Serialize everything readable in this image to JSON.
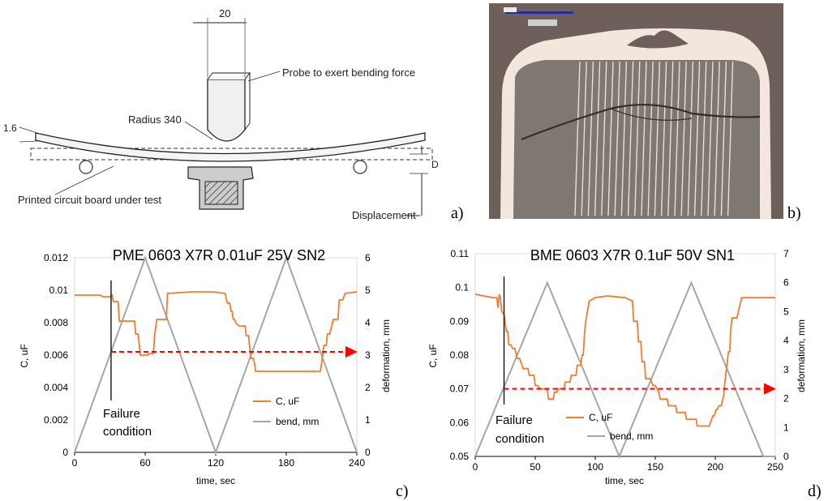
{
  "panel_labels": {
    "a": "a)",
    "b": "b)",
    "c": "c)",
    "d": "d)"
  },
  "diagram": {
    "width_label": "20",
    "probe_label": "Probe to exert bending force",
    "radius_label": "Radius 340",
    "thickness_label": "1.6",
    "pcb_label": "Printed circuit board under test",
    "displacement_label": "Displacement",
    "d_label": "D"
  },
  "micrograph": {
    "scale_text": "",
    "colors": {
      "background": "#6f5f5b",
      "body": "#7e7772",
      "electrode": "#e8e0d8",
      "termination": "#f3e6dc",
      "crack": "#3a2a26"
    }
  },
  "colors": {
    "capacitance": "#ed7d31",
    "bend": "#a6a6a6",
    "failure_arrow": "#ff0000",
    "axis": "#000000"
  },
  "chart_data": [
    {
      "type": "line",
      "title": "PME 0603 X7R 0.01uF 25V SN2",
      "xlabel": "time, sec",
      "ylabel": "C, uF",
      "y2label": "deformation, mm",
      "xlim": [
        0,
        240
      ],
      "ylim": [
        0,
        0.012
      ],
      "y2lim": [
        0,
        6
      ],
      "xticks": [
        "0",
        "60",
        "120",
        "180",
        "240"
      ],
      "yticks": [
        "0",
        "0.002",
        "0.004",
        "0.006",
        "0.008",
        "0.01",
        "0.012"
      ],
      "y2ticks": [
        "0",
        "1",
        "2",
        "3",
        "4",
        "5",
        "6"
      ],
      "legend_position": "lower-right",
      "annotation": {
        "lines": [
          "Failure",
          "condition"
        ],
        "x": 31,
        "failure_c": 0.0062
      },
      "series": [
        {
          "name": "C, uF",
          "axis": "left",
          "x": [
            0,
            22,
            24,
            30,
            32,
            33,
            37,
            38,
            51,
            52,
            54,
            55,
            56,
            62,
            64,
            67,
            68,
            70,
            78,
            79,
            100,
            118,
            128,
            130,
            132,
            133,
            134,
            135,
            136,
            137,
            138,
            140,
            145,
            146,
            148,
            149,
            150,
            152,
            153,
            154,
            177,
            178,
            209,
            210,
            211,
            212,
            214,
            215,
            217,
            220,
            224,
            225,
            228,
            230,
            240
          ],
          "y": [
            0.0097,
            0.0097,
            0.0096,
            0.0096,
            0.0097,
            0.0093,
            0.0093,
            0.0081,
            0.0081,
            0.0073,
            0.0073,
            0.0066,
            0.006,
            0.006,
            0.0061,
            0.0061,
            0.0072,
            0.0082,
            0.0082,
            0.0098,
            0.0099,
            0.0099,
            0.0098,
            0.0092,
            0.0092,
            0.0087,
            0.0087,
            0.0082,
            0.0082,
            0.008,
            0.0079,
            0.0078,
            0.0078,
            0.0072,
            0.0072,
            0.0064,
            0.0058,
            0.0058,
            0.0055,
            0.005,
            0.005,
            0.005,
            0.005,
            0.0055,
            0.006,
            0.0066,
            0.0066,
            0.0073,
            0.0073,
            0.0082,
            0.0082,
            0.0094,
            0.0094,
            0.0098,
            0.0099
          ]
        },
        {
          "name": "bend, mm",
          "axis": "right",
          "x": [
            0,
            60,
            120,
            180,
            240
          ],
          "y": [
            0,
            6,
            0,
            6,
            0
          ]
        }
      ]
    },
    {
      "type": "line",
      "title": "BME 0603 X7R 0.1uF 50V SN1",
      "xlabel": "time, sec",
      "ylabel": "C, uF",
      "y2label": "deformation, mm",
      "xlim": [
        0,
        250
      ],
      "ylim": [
        0.05,
        0.11
      ],
      "y2lim": [
        0,
        7
      ],
      "xticks": [
        "0",
        "50",
        "100",
        "150",
        "200",
        "250"
      ],
      "yticks": [
        "0.05",
        "0.06",
        "0.07",
        "0.08",
        "0.09",
        "0.1",
        "0.11"
      ],
      "y2ticks": [
        "0",
        "1",
        "2",
        "3",
        "4",
        "5",
        "6",
        "7"
      ],
      "legend_position": "lower-center",
      "annotation": {
        "lines": [
          "Failure",
          "condition"
        ],
        "x": 24,
        "failure_c": 0.07
      },
      "series": [
        {
          "name": "C, uF",
          "axis": "left",
          "x": [
            0,
            15,
            18,
            19,
            20,
            21,
            22,
            24,
            26,
            27,
            28,
            30,
            31,
            33,
            35,
            37,
            39,
            40,
            44,
            45,
            49,
            50,
            52,
            54,
            55,
            60,
            61,
            65,
            66,
            68,
            69,
            74,
            75,
            79,
            80,
            84,
            85,
            88,
            89,
            90,
            91,
            92,
            95,
            100,
            110,
            125,
            131,
            132,
            135,
            136,
            138,
            139,
            141,
            142,
            146,
            148,
            150,
            153,
            154,
            160,
            161,
            167,
            168,
            175,
            176,
            184,
            185,
            195,
            196,
            198,
            199,
            201,
            202,
            203,
            205,
            207,
            208,
            211,
            212,
            213,
            214,
            218,
            220,
            222,
            250
          ],
          "y": [
            0.098,
            0.097,
            0.097,
            0.094,
            0.098,
            0.097,
            0.093,
            0.092,
            0.087,
            0.087,
            0.083,
            0.083,
            0.082,
            0.082,
            0.079,
            0.079,
            0.077,
            0.076,
            0.076,
            0.074,
            0.074,
            0.071,
            0.071,
            0.07,
            0.07,
            0.07,
            0.067,
            0.067,
            0.069,
            0.069,
            0.07,
            0.07,
            0.072,
            0.072,
            0.074,
            0.074,
            0.077,
            0.077,
            0.08,
            0.08,
            0.086,
            0.09,
            0.096,
            0.097,
            0.0975,
            0.097,
            0.096,
            0.09,
            0.09,
            0.084,
            0.084,
            0.078,
            0.078,
            0.073,
            0.073,
            0.071,
            0.071,
            0.069,
            0.067,
            0.067,
            0.065,
            0.065,
            0.063,
            0.063,
            0.061,
            0.061,
            0.059,
            0.059,
            0.06,
            0.062,
            0.062,
            0.064,
            0.064,
            0.065,
            0.065,
            0.068,
            0.072,
            0.081,
            0.081,
            0.088,
            0.091,
            0.091,
            0.094,
            0.097,
            0.097
          ]
        },
        {
          "name": "bend, mm",
          "axis": "right",
          "x": [
            0,
            60,
            120,
            180,
            240,
            250
          ],
          "y": [
            0,
            6,
            0,
            6,
            0,
            0
          ]
        }
      ]
    }
  ]
}
